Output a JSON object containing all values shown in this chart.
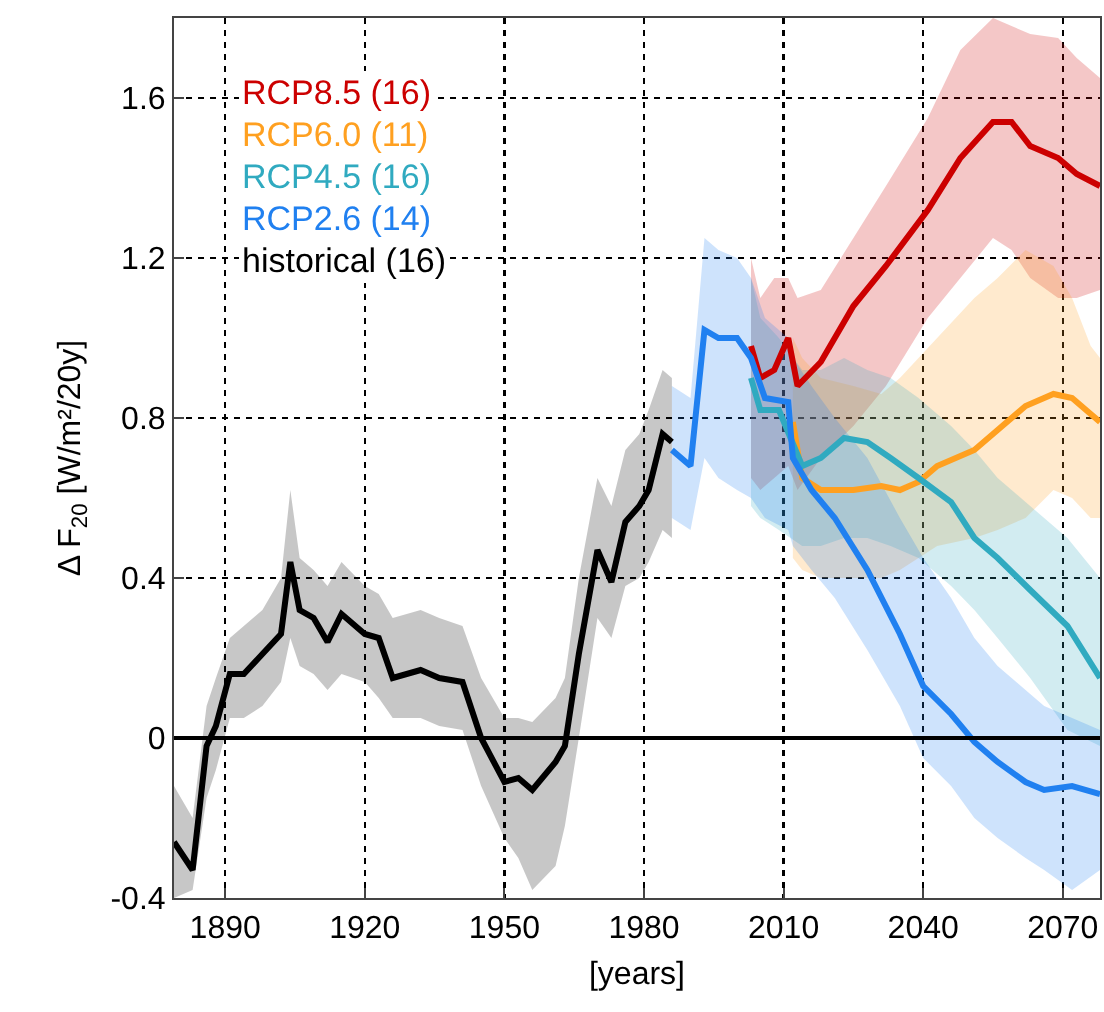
{
  "chart_data": {
    "type": "line",
    "xlabel": "[years]",
    "ylabel": "Δ F$_{20}$ [W/m²/20y]",
    "xlim": [
      1879,
      2078
    ],
    "xticks": [
      1890,
      1920,
      1950,
      1980,
      2010,
      2040,
      2070
    ],
    "ylim": [
      -0.4,
      1.8
    ],
    "yticks": [
      -0.4,
      0,
      0.4,
      0.8,
      1.2,
      1.6
    ],
    "grid": true,
    "legend": "top left",
    "line_style": "solid",
    "ref_lines": [
      {
        "axis": "y",
        "value": 0,
        "color": "#000000"
      }
    ],
    "series": [
      {
        "name": "RCP8.5 (16)",
        "color": "#cc0000",
        "x": [
          2003,
          2005,
          2008,
          2011,
          2013,
          2018,
          2025,
          2032,
          2041,
          2048,
          2055,
          2059,
          2063,
          2069,
          2073,
          2078
        ],
        "values": [
          0.98,
          0.9,
          0.92,
          1.0,
          0.88,
          0.94,
          1.08,
          1.18,
          1.32,
          1.45,
          1.54,
          1.54,
          1.48,
          1.45,
          1.41,
          1.38
        ],
        "lower": [
          0.65,
          0.62,
          0.65,
          0.68,
          0.62,
          0.7,
          0.78,
          0.88,
          1.05,
          1.15,
          1.25,
          1.22,
          1.15,
          1.1,
          1.1,
          1.12
        ],
        "upper": [
          1.2,
          1.1,
          1.15,
          1.15,
          1.1,
          1.12,
          1.25,
          1.38,
          1.55,
          1.72,
          1.8,
          1.78,
          1.76,
          1.75,
          1.7,
          1.65
        ]
      },
      {
        "name": "RCP6.0 (11)",
        "color": "#ffa020",
        "x": [
          2012,
          2014,
          2018,
          2025,
          2031,
          2035,
          2039,
          2043,
          2051,
          2056,
          2062,
          2068,
          2072,
          2076,
          2078
        ],
        "values": [
          0.79,
          0.65,
          0.62,
          0.62,
          0.63,
          0.62,
          0.64,
          0.68,
          0.72,
          0.77,
          0.83,
          0.86,
          0.85,
          0.81,
          0.79
        ],
        "lower": [
          0.45,
          0.42,
          0.4,
          0.4,
          0.4,
          0.42,
          0.45,
          0.48,
          0.5,
          0.52,
          0.55,
          0.62,
          0.6,
          0.55,
          0.55
        ],
        "upper": [
          1.0,
          0.95,
          0.9,
          0.88,
          0.86,
          0.9,
          0.95,
          1.0,
          1.1,
          1.15,
          1.22,
          1.18,
          1.1,
          0.98,
          0.95
        ]
      },
      {
        "name": "RCP4.5 (16)",
        "color": "#30aac0",
        "x": [
          2003,
          2005,
          2009,
          2014,
          2018,
          2023,
          2028,
          2033,
          2039,
          2046,
          2051,
          2056,
          2063,
          2071,
          2078
        ],
        "values": [
          0.9,
          0.82,
          0.82,
          0.68,
          0.7,
          0.75,
          0.74,
          0.7,
          0.65,
          0.59,
          0.5,
          0.45,
          0.37,
          0.28,
          0.15
        ],
        "lower": [
          0.58,
          0.55,
          0.52,
          0.48,
          0.48,
          0.5,
          0.5,
          0.48,
          0.45,
          0.38,
          0.32,
          0.25,
          0.15,
          0.02,
          -0.02
        ],
        "upper": [
          1.15,
          1.05,
          1.0,
          0.92,
          0.92,
          0.95,
          0.92,
          0.9,
          0.85,
          0.78,
          0.72,
          0.65,
          0.58,
          0.5,
          0.4
        ]
      },
      {
        "name": "RCP2.6 (14)",
        "color": "#2080f0",
        "x": [
          1986,
          1990,
          1993,
          1996,
          2000,
          2003,
          2006,
          2011,
          2012,
          2016,
          2021,
          2028,
          2035,
          2040,
          2046,
          2051,
          2056,
          2062,
          2066,
          2072,
          2078
        ],
        "values": [
          0.72,
          0.68,
          1.02,
          1.0,
          1.0,
          0.95,
          0.85,
          0.84,
          0.7,
          0.62,
          0.55,
          0.42,
          0.26,
          0.13,
          0.06,
          -0.01,
          -0.06,
          -0.11,
          -0.13,
          -0.12,
          -0.14
        ],
        "lower": [
          0.55,
          0.52,
          0.7,
          0.65,
          0.62,
          0.6,
          0.55,
          0.52,
          0.48,
          0.42,
          0.35,
          0.22,
          0.08,
          -0.05,
          -0.12,
          -0.2,
          -0.25,
          -0.3,
          -0.33,
          -0.38,
          -0.33
        ],
        "upper": [
          0.88,
          0.85,
          1.25,
          1.22,
          1.2,
          1.15,
          1.05,
          1.0,
          0.95,
          0.88,
          0.8,
          0.7,
          0.55,
          0.45,
          0.35,
          0.25,
          0.18,
          0.12,
          0.08,
          0.05,
          0.02
        ]
      },
      {
        "name": "historical (16)",
        "color": "#000000",
        "x": [
          1879,
          1883,
          1886,
          1888,
          1891,
          1894,
          1898,
          1902,
          1904,
          1906,
          1909,
          1912,
          1915,
          1920,
          1923,
          1926,
          1932,
          1936,
          1941,
          1945,
          1950,
          1953,
          1956,
          1961,
          1963,
          1966,
          1970,
          1973,
          1976,
          1979,
          1981,
          1984,
          1986
        ],
        "values": [
          -0.26,
          -0.33,
          -0.02,
          0.03,
          0.16,
          0.16,
          0.21,
          0.26,
          0.44,
          0.32,
          0.3,
          0.24,
          0.31,
          0.26,
          0.25,
          0.15,
          0.17,
          0.15,
          0.14,
          0.0,
          -0.11,
          -0.1,
          -0.13,
          -0.06,
          -0.02,
          0.21,
          0.47,
          0.39,
          0.54,
          0.58,
          0.62,
          0.76,
          0.74
        ],
        "lower": [
          -0.4,
          -0.38,
          -0.15,
          -0.08,
          0.05,
          0.05,
          0.08,
          0.14,
          0.25,
          0.18,
          0.16,
          0.12,
          0.16,
          0.14,
          0.1,
          0.05,
          0.05,
          0.03,
          0.02,
          -0.12,
          -0.25,
          -0.3,
          -0.38,
          -0.32,
          -0.22,
          0.0,
          0.3,
          0.25,
          0.38,
          0.4,
          0.44,
          0.52,
          0.5
        ],
        "upper": [
          -0.12,
          -0.2,
          0.08,
          0.15,
          0.25,
          0.28,
          0.32,
          0.4,
          0.62,
          0.45,
          0.42,
          0.38,
          0.44,
          0.38,
          0.36,
          0.3,
          0.32,
          0.3,
          0.28,
          0.15,
          0.05,
          0.05,
          0.04,
          0.1,
          0.15,
          0.4,
          0.65,
          0.58,
          0.72,
          0.76,
          0.82,
          0.92,
          0.9
        ]
      }
    ]
  }
}
